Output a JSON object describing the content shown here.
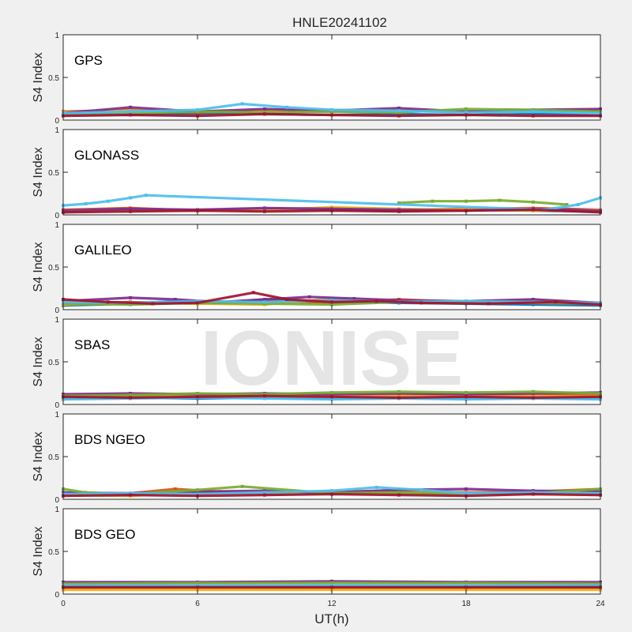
{
  "figure": {
    "title": "HNLE20241102",
    "xlabel": "UT(h)",
    "watermark": "IONISE",
    "background": "#f0f0f0"
  },
  "chart_data": {
    "type": "line",
    "title": "HNLE20241102",
    "xlabel": "UT(h)",
    "ylabel": "S4 Index",
    "xlim": [
      0,
      24
    ],
    "ylim": [
      0,
      1
    ],
    "xticks": [
      0,
      6,
      12,
      18,
      24
    ],
    "yticks": [
      0,
      0.5,
      1
    ],
    "xtick_labels": [
      "0",
      "6",
      "12",
      "18",
      "24"
    ],
    "ytick_labels": [
      "0",
      "0.5",
      "1"
    ],
    "grid": false,
    "colors": [
      "#0072BD",
      "#D95319",
      "#EDB120",
      "#7E2F8E",
      "#77AC30",
      "#4DBEEE",
      "#A2142F"
    ],
    "panels": [
      {
        "label": "GPS",
        "series": [
          {
            "color": "#0072BD",
            "x": [
              0,
              3,
              6,
              9,
              12,
              15,
              18,
              21,
              24
            ],
            "y": [
              0.07,
              0.06,
              0.08,
              0.07,
              0.06,
              0.07,
              0.06,
              0.07,
              0.06
            ]
          },
          {
            "color": "#D95319",
            "x": [
              0,
              3,
              6,
              9,
              12,
              15,
              18,
              21,
              24
            ],
            "y": [
              0.1,
              0.12,
              0.09,
              0.11,
              0.1,
              0.12,
              0.1,
              0.11,
              0.12
            ]
          },
          {
            "color": "#EDB120",
            "x": [
              0,
              3,
              6,
              9,
              12,
              15,
              18,
              21,
              24
            ],
            "y": [
              0.09,
              0.11,
              0.1,
              0.12,
              0.1,
              0.11,
              0.09,
              0.1,
              0.1
            ]
          },
          {
            "color": "#7E2F8E",
            "x": [
              0,
              3,
              6,
              9,
              12,
              15,
              18,
              21,
              24
            ],
            "y": [
              0.08,
              0.15,
              0.1,
              0.13,
              0.11,
              0.14,
              0.1,
              0.12,
              0.13
            ]
          },
          {
            "color": "#77AC30",
            "x": [
              0,
              3,
              6,
              9,
              12,
              15,
              18,
              21,
              24
            ],
            "y": [
              0.06,
              0.08,
              0.1,
              0.09,
              0.1,
              0.09,
              0.13,
              0.12,
              0.1
            ]
          },
          {
            "color": "#4DBEEE",
            "x": [
              0,
              3,
              6,
              8,
              10,
              12,
              15,
              18,
              21,
              24
            ],
            "y": [
              0.08,
              0.1,
              0.12,
              0.19,
              0.15,
              0.12,
              0.11,
              0.09,
              0.1,
              0.08
            ]
          },
          {
            "color": "#A2142F",
            "x": [
              0,
              3,
              6,
              9,
              12,
              15,
              18,
              21,
              24
            ],
            "y": [
              0.05,
              0.06,
              0.05,
              0.07,
              0.06,
              0.05,
              0.06,
              0.05,
              0.05
            ]
          }
        ]
      },
      {
        "label": "GLONASS",
        "series": [
          {
            "color": "#0072BD",
            "x": [
              0,
              3,
              6,
              9,
              12,
              15,
              18,
              21,
              24
            ],
            "y": [
              0.04,
              0.06,
              0.05,
              0.07,
              0.06,
              0.05,
              0.06,
              0.05,
              0.04
            ]
          },
          {
            "color": "#D95319",
            "x": [
              0,
              3,
              6,
              9,
              12,
              15,
              18,
              21,
              24
            ],
            "y": [
              0.06,
              0.08,
              0.05,
              0.07,
              0.08,
              0.06,
              0.07,
              0.08,
              0.06
            ]
          },
          {
            "color": "#EDB120",
            "x": [
              0,
              3,
              6,
              9,
              12,
              15,
              18,
              21,
              24
            ],
            "y": [
              0.05,
              0.04,
              0.06,
              0.05,
              0.09,
              0.07,
              0.06,
              0.05,
              0.06
            ]
          },
          {
            "color": "#7E2F8E",
            "x": [
              0,
              3,
              6,
              9,
              12,
              15,
              18,
              21,
              24
            ],
            "y": [
              0.05,
              0.07,
              0.06,
              0.08,
              0.07,
              0.06,
              0.05,
              0.07,
              0.05
            ]
          },
          {
            "color": "#77AC30",
            "x": [
              15,
              16.5,
              18,
              19.5,
              21,
              22.5
            ],
            "y": [
              0.14,
              0.16,
              0.16,
              0.17,
              0.15,
              0.12
            ]
          },
          {
            "color": "#4DBEEE",
            "x": [
              0,
              1,
              2,
              3,
              3.7,
              21.5,
              23,
              24
            ],
            "y": [
              0.11,
              0.13,
              0.16,
              0.2,
              0.23,
              0.06,
              0.12,
              0.2
            ]
          },
          {
            "color": "#A2142F",
            "x": [
              0,
              3,
              6,
              9,
              12,
              15,
              18,
              21,
              24
            ],
            "y": [
              0.03,
              0.04,
              0.05,
              0.04,
              0.05,
              0.04,
              0.05,
              0.06,
              0.03
            ]
          }
        ]
      },
      {
        "label": "GALILEO",
        "series": [
          {
            "color": "#0072BD",
            "x": [
              0,
              3,
              5,
              7,
              9,
              11,
              13,
              15,
              18,
              21,
              24
            ],
            "y": [
              0.05,
              0.07,
              0.1,
              0.08,
              0.12,
              0.1,
              0.09,
              0.08,
              0.07,
              0.06,
              0.05
            ]
          },
          {
            "color": "#D95319",
            "x": [
              0,
              3,
              6,
              9,
              12,
              15,
              18,
              21,
              24
            ],
            "y": [
              0.08,
              0.09,
              0.07,
              0.1,
              0.08,
              0.12,
              0.09,
              0.08,
              0.07
            ]
          },
          {
            "color": "#EDB120",
            "x": [
              0,
              3,
              6,
              9,
              12,
              15,
              18,
              21,
              24
            ],
            "y": [
              0.06,
              0.08,
              0.07,
              0.06,
              0.13,
              0.1,
              0.08,
              0.12,
              0.06
            ]
          },
          {
            "color": "#7E2F8E",
            "x": [
              0,
              3,
              5,
              7,
              9,
              11,
              13,
              15,
              18,
              21,
              24
            ],
            "y": [
              0.1,
              0.14,
              0.12,
              0.09,
              0.12,
              0.15,
              0.13,
              0.11,
              0.1,
              0.12,
              0.08
            ]
          },
          {
            "color": "#77AC30",
            "x": [
              0,
              3,
              6,
              9,
              12,
              15,
              18,
              21,
              24
            ],
            "y": [
              0.07,
              0.06,
              0.08,
              0.07,
              0.06,
              0.09,
              0.1,
              0.08,
              0.07
            ]
          },
          {
            "color": "#4DBEEE",
            "x": [
              0,
              3,
              6,
              9,
              12,
              15,
              18,
              21,
              24
            ],
            "y": [
              0.09,
              0.08,
              0.1,
              0.09,
              0.11,
              0.09,
              0.1,
              0.09,
              0.08
            ]
          },
          {
            "color": "#A2142F",
            "x": [
              0,
              2,
              4,
              6,
              8.5,
              10,
              12,
              14,
              16,
              19,
              22,
              24
            ],
            "y": [
              0.12,
              0.09,
              0.07,
              0.08,
              0.2,
              0.12,
              0.09,
              0.1,
              0.08,
              0.07,
              0.09,
              0.06
            ]
          }
        ]
      },
      {
        "label": "SBAS",
        "series": [
          {
            "color": "#0072BD",
            "x": [
              0,
              3,
              6,
              9,
              12,
              15,
              18,
              21,
              24
            ],
            "y": [
              0.07,
              0.08,
              0.07,
              0.08,
              0.07,
              0.08,
              0.07,
              0.08,
              0.07
            ]
          },
          {
            "color": "#D95319",
            "x": [
              0,
              3,
              6,
              9,
              12,
              15,
              18,
              21,
              24
            ],
            "y": [
              0.1,
              0.11,
              0.12,
              0.11,
              0.1,
              0.11,
              0.12,
              0.11,
              0.12
            ]
          },
          {
            "color": "#EDB120",
            "x": [
              0,
              3,
              6,
              9,
              12,
              15,
              18,
              21,
              24
            ],
            "y": [
              0.09,
              0.1,
              0.09,
              0.1,
              0.09,
              0.1,
              0.09,
              0.1,
              0.09
            ]
          },
          {
            "color": "#7E2F8E",
            "x": [
              0,
              3,
              6,
              9,
              12,
              15,
              18,
              21,
              24
            ],
            "y": [
              0.12,
              0.13,
              0.12,
              0.13,
              0.12,
              0.13,
              0.12,
              0.13,
              0.14
            ]
          },
          {
            "color": "#77AC30",
            "x": [
              0,
              3,
              6,
              9,
              12,
              15,
              18,
              21,
              24
            ],
            "y": [
              0.1,
              0.11,
              0.13,
              0.12,
              0.14,
              0.15,
              0.14,
              0.15,
              0.13
            ]
          },
          {
            "color": "#4DBEEE",
            "x": [
              0,
              3,
              6,
              9,
              12,
              15,
              18,
              21,
              24
            ],
            "y": [
              0.06,
              0.07,
              0.08,
              0.07,
              0.06,
              0.07,
              0.06,
              0.07,
              0.06
            ]
          },
          {
            "color": "#A2142F",
            "x": [
              0,
              3,
              6,
              9,
              12,
              15,
              18,
              21,
              24
            ],
            "y": [
              0.09,
              0.08,
              0.09,
              0.1,
              0.09,
              0.08,
              0.09,
              0.08,
              0.09
            ]
          }
        ]
      },
      {
        "label": "BDS NGEO",
        "series": [
          {
            "color": "#0072BD",
            "x": [
              0,
              3,
              6,
              9,
              12,
              15,
              18,
              21,
              24
            ],
            "y": [
              0.05,
              0.06,
              0.07,
              0.06,
              0.08,
              0.07,
              0.06,
              0.08,
              0.1
            ]
          },
          {
            "color": "#D95319",
            "x": [
              0,
              3,
              5,
              7,
              9,
              12,
              15,
              18,
              21,
              24
            ],
            "y": [
              0.06,
              0.07,
              0.12,
              0.09,
              0.07,
              0.09,
              0.1,
              0.08,
              0.09,
              0.12
            ]
          },
          {
            "color": "#EDB120",
            "x": [
              0,
              3,
              6,
              9,
              12,
              15,
              18,
              21,
              24
            ],
            "y": [
              0.05,
              0.04,
              0.08,
              0.06,
              0.1,
              0.08,
              0.07,
              0.06,
              0.05
            ]
          },
          {
            "color": "#7E2F8E",
            "x": [
              0,
              3,
              6,
              9,
              12,
              15,
              18,
              21,
              24
            ],
            "y": [
              0.08,
              0.07,
              0.09,
              0.1,
              0.08,
              0.11,
              0.12,
              0.1,
              0.09
            ]
          },
          {
            "color": "#77AC30",
            "x": [
              0,
              1,
              3,
              6,
              8,
              12,
              15,
              18,
              21,
              24
            ],
            "y": [
              0.12,
              0.08,
              0.06,
              0.11,
              0.15,
              0.07,
              0.08,
              0.06,
              0.07,
              0.12
            ]
          },
          {
            "color": "#4DBEEE",
            "x": [
              0,
              3,
              6,
              9,
              12,
              14,
              16,
              18,
              21,
              24
            ],
            "y": [
              0.06,
              0.07,
              0.06,
              0.08,
              0.1,
              0.14,
              0.11,
              0.07,
              0.08,
              0.07
            ]
          },
          {
            "color": "#A2142F",
            "x": [
              0,
              3,
              6,
              9,
              12,
              15,
              18,
              21,
              24
            ],
            "y": [
              0.04,
              0.05,
              0.04,
              0.05,
              0.06,
              0.05,
              0.04,
              0.06,
              0.05
            ]
          }
        ]
      },
      {
        "label": "BDS GEO",
        "series": [
          {
            "color": "#0072BD",
            "x": [
              0,
              6,
              12,
              18,
              24
            ],
            "y": [
              0.09,
              0.09,
              0.09,
              0.09,
              0.09
            ]
          },
          {
            "color": "#D95319",
            "x": [
              0,
              6,
              12,
              18,
              24
            ],
            "y": [
              0.06,
              0.06,
              0.06,
              0.06,
              0.06
            ]
          },
          {
            "color": "#EDB120",
            "x": [
              0,
              6,
              12,
              18,
              24
            ],
            "y": [
              0.05,
              0.05,
              0.05,
              0.05,
              0.05
            ]
          },
          {
            "color": "#7E2F8E",
            "x": [
              0,
              6,
              12,
              18,
              24
            ],
            "y": [
              0.14,
              0.14,
              0.15,
              0.14,
              0.14
            ]
          },
          {
            "color": "#77AC30",
            "x": [
              0,
              6,
              12,
              18,
              24
            ],
            "y": [
              0.12,
              0.13,
              0.13,
              0.13,
              0.12
            ]
          },
          {
            "color": "#4DBEEE",
            "x": [
              0,
              6,
              12,
              18,
              24
            ],
            "y": [
              0.1,
              0.1,
              0.1,
              0.1,
              0.1
            ]
          },
          {
            "color": "#A2142F",
            "x": [
              0,
              6,
              12,
              18,
              24
            ],
            "y": [
              0.08,
              0.08,
              0.08,
              0.08,
              0.08
            ]
          }
        ]
      }
    ]
  }
}
